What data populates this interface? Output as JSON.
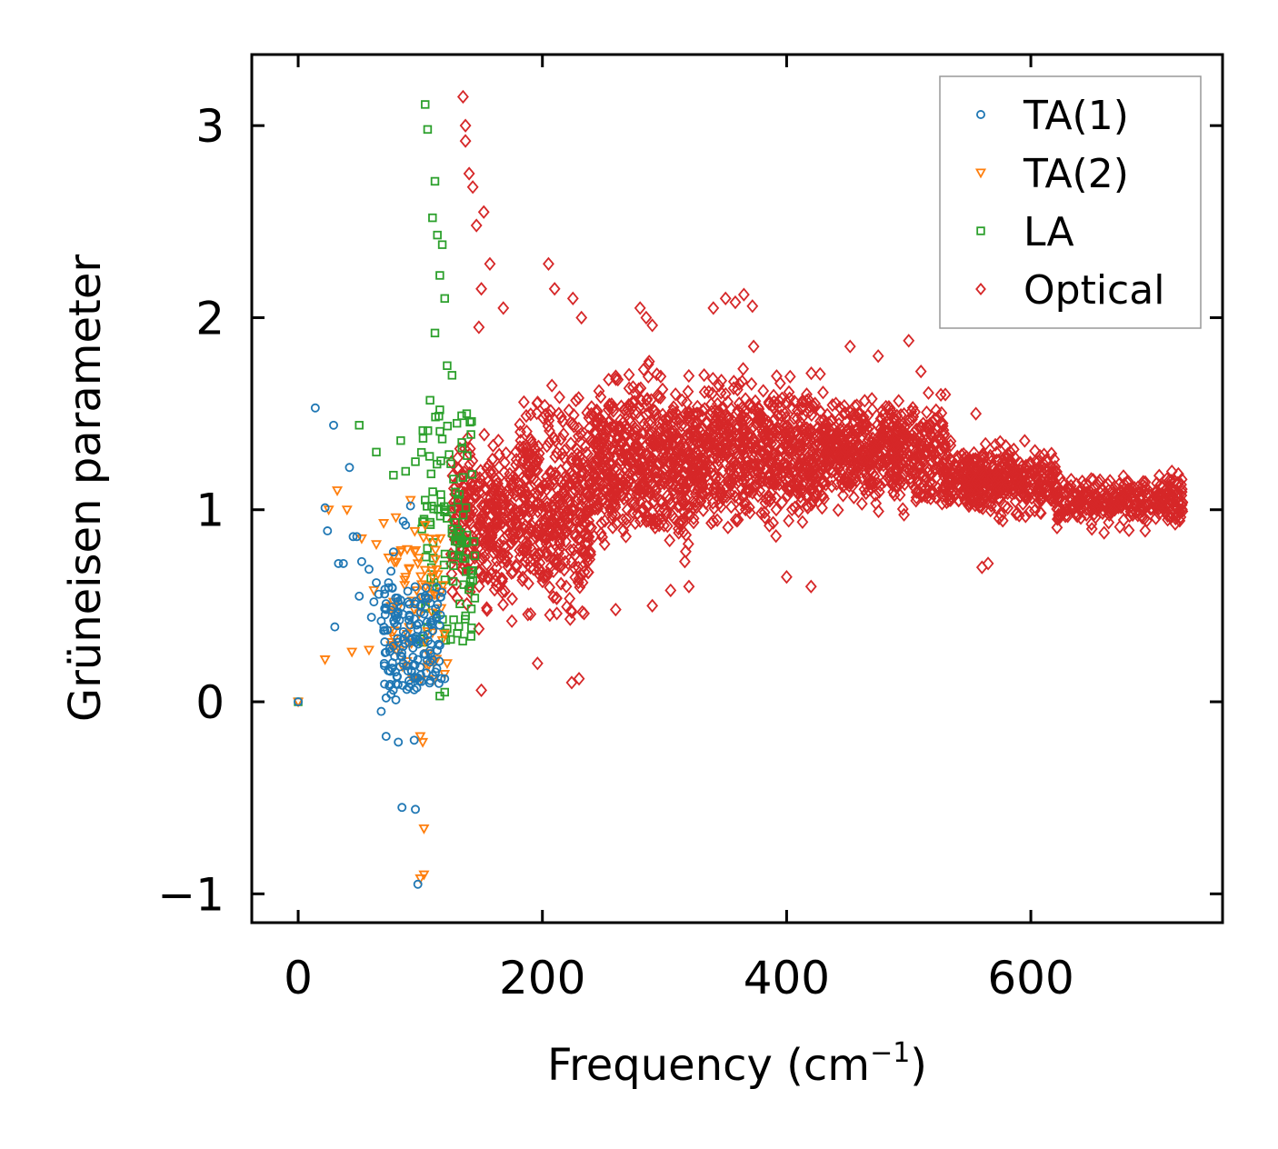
{
  "chart_data": {
    "type": "scatter",
    "title": "",
    "xlabel": "Frequency (cm",
    "xlabel_sup": "−1",
    "xlabel_end": ")",
    "ylabel": "Grüneisen parameter",
    "xlim": [
      -38,
      757
    ],
    "ylim": [
      -1.15,
      3.37
    ],
    "xticks": [
      0,
      200,
      400,
      600
    ],
    "xtick_labels": [
      "0",
      "200",
      "400",
      "600"
    ],
    "yticks": [
      -1,
      0,
      1,
      2,
      3
    ],
    "ytick_labels": [
      "−1",
      "0",
      "1",
      "2",
      "3"
    ],
    "grid": false,
    "legend_position": "top-right",
    "colors": {
      "ta1": "#1f77b4",
      "ta2": "#ff7f0e",
      "la": "#2ca02c",
      "optical": "#d62728"
    },
    "series": [
      {
        "name": "TA(1)",
        "marker": "circle",
        "color": "#1f77b4",
        "points": [
          [
            0,
            0
          ],
          [
            14,
            1.53
          ],
          [
            29,
            1.44
          ],
          [
            22,
            1.01
          ],
          [
            24,
            0.89
          ],
          [
            30,
            0.39
          ],
          [
            33,
            0.72
          ],
          [
            37,
            0.72
          ],
          [
            42,
            1.22
          ],
          [
            45,
            0.86
          ],
          [
            48,
            0.86
          ],
          [
            50,
            0.55
          ],
          [
            52,
            0.73
          ],
          [
            58,
            0.69
          ],
          [
            60,
            0.44
          ],
          [
            62,
            0.52
          ],
          [
            66,
            0.56
          ],
          [
            68,
            0.42
          ],
          [
            70,
            0.37
          ],
          [
            72,
            0.48
          ],
          [
            74,
            0.62
          ],
          [
            76,
            0.68
          ],
          [
            78,
            0.29
          ],
          [
            80,
            0.45
          ],
          [
            82,
            0.31
          ],
          [
            84,
            0.24
          ],
          [
            86,
            0.2
          ],
          [
            88,
            0.35
          ],
          [
            90,
            0.52
          ],
          [
            92,
            0.4
          ],
          [
            94,
            0.28
          ],
          [
            96,
            0.33
          ],
          [
            98,
            0.22
          ],
          [
            100,
            0.18
          ],
          [
            72,
            0.02
          ],
          [
            76,
            0.04
          ],
          [
            80,
            0.01
          ],
          [
            68,
            -0.05
          ],
          [
            72,
            -0.18
          ],
          [
            82,
            -0.21
          ],
          [
            95,
            -0.2
          ],
          [
            85,
            -0.55
          ],
          [
            96,
            -0.56
          ],
          [
            98,
            -0.95
          ],
          [
            88,
            0.92
          ],
          [
            92,
            1.02
          ],
          [
            103,
            0.25
          ],
          [
            105,
            0.15
          ],
          [
            110,
            0.22
          ],
          [
            115,
            0.3
          ],
          [
            120,
            0.12
          ],
          [
            86,
            0.94
          ],
          [
            78,
            0.78
          ],
          [
            64,
            0.62
          ]
        ],
        "dense": {
          "x": [
            70,
            118
          ],
          "y": [
            0.05,
            0.6
          ],
          "count": 140
        }
      },
      {
        "name": "TA(2)",
        "marker": "triangle-down",
        "color": "#ff7f0e",
        "points": [
          [
            0,
            0
          ],
          [
            22,
            0.22
          ],
          [
            25,
            1.0
          ],
          [
            32,
            1.1
          ],
          [
            40,
            1.0
          ],
          [
            44,
            0.26
          ],
          [
            52,
            0.85
          ],
          [
            58,
            0.27
          ],
          [
            62,
            0.58
          ],
          [
            64,
            0.82
          ],
          [
            70,
            0.93
          ],
          [
            74,
            0.75
          ],
          [
            78,
            0.52
          ],
          [
            80,
            0.96
          ],
          [
            84,
            0.78
          ],
          [
            88,
            0.65
          ],
          [
            92,
            1.05
          ],
          [
            95,
            0.48
          ],
          [
            98,
            0.72
          ],
          [
            100,
            -0.18
          ],
          [
            102,
            -0.21
          ],
          [
            103,
            -0.66
          ],
          [
            103,
            -0.9
          ],
          [
            100,
            -0.92
          ],
          [
            104,
            0.92
          ],
          [
            108,
            0.6
          ],
          [
            110,
            0.36
          ],
          [
            114,
            0.55
          ],
          [
            118,
            0.32
          ],
          [
            122,
            0.2
          ]
        ],
        "dense": {
          "x": [
            75,
            120
          ],
          "y": [
            0.1,
            0.9
          ],
          "count": 70
        }
      },
      {
        "name": "LA",
        "marker": "square",
        "color": "#2ca02c",
        "points": [
          [
            0,
            0
          ],
          [
            50,
            1.44
          ],
          [
            64,
            1.3
          ],
          [
            84,
            1.36
          ],
          [
            96,
            1.25
          ],
          [
            104,
            3.11
          ],
          [
            106,
            2.98
          ],
          [
            112,
            2.71
          ],
          [
            110,
            2.52
          ],
          [
            114,
            2.43
          ],
          [
            118,
            2.38
          ],
          [
            116,
            2.22
          ],
          [
            120,
            2.1
          ],
          [
            112,
            1.92
          ],
          [
            122,
            1.75
          ],
          [
            108,
            1.57
          ],
          [
            116,
            1.52
          ],
          [
            126,
            1.7
          ],
          [
            130,
            1.45
          ],
          [
            134,
            1.35
          ],
          [
            138,
            1.5
          ],
          [
            78,
            1.18
          ],
          [
            88,
            1.2
          ],
          [
            104,
            1.05
          ],
          [
            120,
            0.05
          ],
          [
            116,
            0.03
          ],
          [
            122,
            0.38
          ],
          [
            110,
            0.6
          ],
          [
            126,
            0.9
          ],
          [
            132,
            1.08
          ]
        ],
        "dense": {
          "x": [
            100,
            145
          ],
          "y": [
            0.3,
            1.5
          ],
          "count": 110
        }
      },
      {
        "name": "Optical",
        "marker": "diamond",
        "color": "#d62728",
        "points": [
          [
            135,
            3.15
          ],
          [
            137,
            3.0
          ],
          [
            137,
            2.92
          ],
          [
            140,
            2.75
          ],
          [
            143,
            2.68
          ],
          [
            146,
            2.48
          ],
          [
            152,
            2.55
          ],
          [
            157,
            2.28
          ],
          [
            150,
            2.15
          ],
          [
            148,
            1.95
          ],
          [
            168,
            2.05
          ],
          [
            205,
            2.28
          ],
          [
            210,
            2.15
          ],
          [
            225,
            2.1
          ],
          [
            232,
            2.0
          ],
          [
            280,
            2.05
          ],
          [
            285,
            2.0
          ],
          [
            290,
            1.96
          ],
          [
            340,
            2.05
          ],
          [
            350,
            2.1
          ],
          [
            358,
            2.08
          ],
          [
            365,
            2.12
          ],
          [
            372,
            2.06
          ],
          [
            373,
            1.85
          ],
          [
            452,
            1.85
          ],
          [
            475,
            1.8
          ],
          [
            500,
            1.88
          ],
          [
            510,
            1.72
          ],
          [
            530,
            1.6
          ],
          [
            555,
            1.5
          ],
          [
            560,
            0.7
          ],
          [
            565,
            0.72
          ],
          [
            224,
            0.1
          ],
          [
            230,
            0.12
          ],
          [
            150,
            0.06
          ],
          [
            148,
            0.38
          ],
          [
            175,
            0.42
          ],
          [
            196,
            0.2
          ],
          [
            260,
            0.48
          ],
          [
            290,
            0.5
          ],
          [
            305,
            0.58
          ],
          [
            320,
            0.6
          ],
          [
            400,
            0.65
          ],
          [
            420,
            0.6
          ],
          [
            720,
            0.97
          ],
          [
            705,
            0.98
          ],
          [
            690,
            1.05
          ],
          [
            660,
            0.88
          ],
          [
            650,
            0.9
          ],
          [
            640,
            1.1
          ]
        ],
        "bands": [
          {
            "x": [
              125,
              180
            ],
            "center": 0.95,
            "spread": 0.55,
            "count": 320
          },
          {
            "x": [
              180,
              240
            ],
            "center": 1.0,
            "spread": 0.75,
            "count": 420
          },
          {
            "x": [
              240,
              330
            ],
            "center": 1.25,
            "spread": 0.6,
            "count": 620
          },
          {
            "x": [
              330,
              430
            ],
            "center": 1.3,
            "spread": 0.5,
            "count": 620
          },
          {
            "x": [
              430,
              530
            ],
            "center": 1.3,
            "spread": 0.38,
            "count": 560
          },
          {
            "x": [
              530,
              620
            ],
            "center": 1.15,
            "spread": 0.24,
            "count": 420
          },
          {
            "x": [
              620,
              725
            ],
            "center": 1.05,
            "spread": 0.17,
            "count": 320
          }
        ]
      }
    ]
  }
}
